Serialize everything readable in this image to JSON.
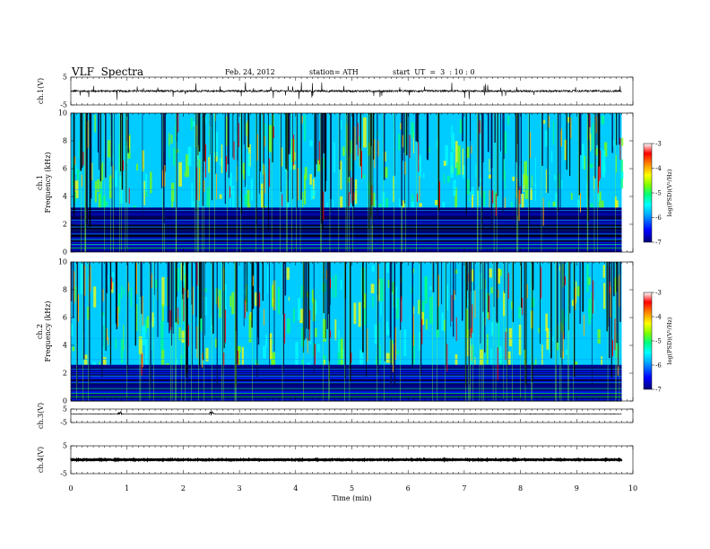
{
  "header": {
    "title": "VLF  Spectra",
    "date": "Feb. 24, 2012",
    "station": "station= ATH",
    "start": "start  UT  =  3  : 10 : 0"
  },
  "chart_data": [
    {
      "type": "line",
      "panel": "ch1-waveform",
      "ylabel": "ch.1(V)",
      "ylim": [
        -5,
        5
      ],
      "yticks": [
        "5",
        "-5"
      ],
      "baseline_value": 0,
      "description_values": {
        "typical_amplitude_V": 0.4,
        "spike_amplitude_V": 2.5
      },
      "x_range_min": [
        0,
        9.8
      ]
    },
    {
      "type": "heatmap",
      "panel": "ch1-spectrogram",
      "ylabel": "ch.1\nFrequency  (kHz)",
      "ylim": [
        0,
        10
      ],
      "yticks": [
        "0",
        "2",
        "4",
        "6",
        "8",
        "10"
      ],
      "x_range_min": [
        0,
        9.8
      ],
      "quiet_band_top_kHz": 3.2,
      "colorbar": {
        "label": "log(PSD)(V²/Hz)",
        "range": [
          -7,
          -3
        ],
        "ticks": [
          "-3",
          "-4",
          "-5",
          "-6",
          "-7"
        ]
      },
      "colormap": [
        "#00007a",
        "#0000ff",
        "#00aaff",
        "#00ffff",
        "#00ff80",
        "#80ff00",
        "#ffff00",
        "#ff8000",
        "#ff0000",
        "#ffffff"
      ]
    },
    {
      "type": "heatmap",
      "panel": "ch2-spectrogram",
      "ylabel": "ch.2\nFrequency  (kHz)",
      "ylim": [
        0,
        10
      ],
      "yticks": [
        "0",
        "2",
        "4",
        "6",
        "8",
        "10"
      ],
      "x_range_min": [
        0,
        9.8
      ],
      "quiet_band_top_kHz": 2.6,
      "colorbar": {
        "label": "log(PSD)(V²/Hz)",
        "range": [
          -7,
          -3
        ],
        "ticks": [
          "-3",
          "-4",
          "-5",
          "-6",
          "-7"
        ]
      }
    },
    {
      "type": "line",
      "panel": "ch3-waveform",
      "ylabel": "ch.3(V)",
      "ylim": [
        -5,
        5
      ],
      "yticks": [
        "5",
        "-5"
      ],
      "baseline_value": 1.3,
      "events_min": [
        0.88,
        2.5
      ],
      "x_range_min": [
        0,
        9.8
      ]
    },
    {
      "type": "line",
      "panel": "ch4-waveform",
      "ylabel": "ch.4(V)",
      "ylim": [
        -5,
        5
      ],
      "yticks": [
        "5",
        "-5"
      ],
      "baseline_value": 0,
      "x_range_min": [
        0,
        9.8
      ]
    }
  ],
  "x_axis": {
    "label": "Time  (min)",
    "range": [
      0,
      10
    ],
    "ticks": [
      "0",
      "1",
      "2",
      "3",
      "4",
      "5",
      "6",
      "7",
      "8",
      "9",
      "10"
    ]
  }
}
